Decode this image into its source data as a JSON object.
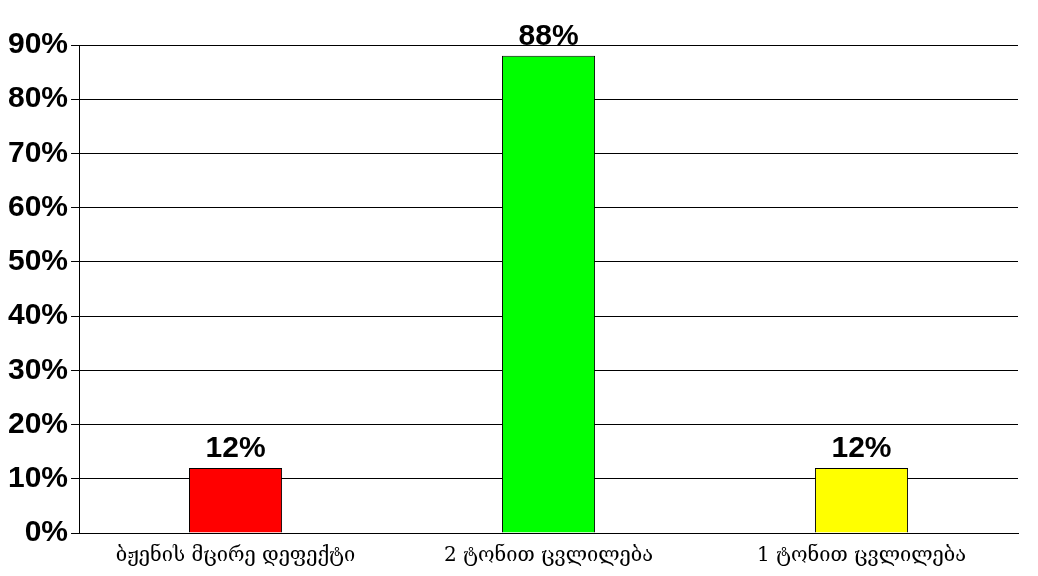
{
  "chart_data": {
    "type": "bar",
    "categories": [
      "ბჟენის მცირე დეფექტი",
      "2 ტონით ცვლილება",
      "1 ტონით ცვლილება"
    ],
    "values": [
      12,
      88,
      12
    ],
    "colors": [
      "#ff0000",
      "#00ff00",
      "#ffff00"
    ],
    "ylim": [
      0,
      90
    ],
    "yticks": [
      {
        "value": 0,
        "label": "0%"
      },
      {
        "value": 10,
        "label": "10%"
      },
      {
        "value": 20,
        "label": "20%"
      },
      {
        "value": 30,
        "label": "30%"
      },
      {
        "value": 40,
        "label": "40%"
      },
      {
        "value": 50,
        "label": "50%"
      },
      {
        "value": 60,
        "label": "60%"
      },
      {
        "value": 70,
        "label": "70%"
      },
      {
        "value": 80,
        "label": "80%"
      },
      {
        "value": 90,
        "label": "90%"
      }
    ],
    "value_labels": [
      "12%",
      "88%",
      "12%"
    ],
    "grid": "y",
    "legend": false
  }
}
